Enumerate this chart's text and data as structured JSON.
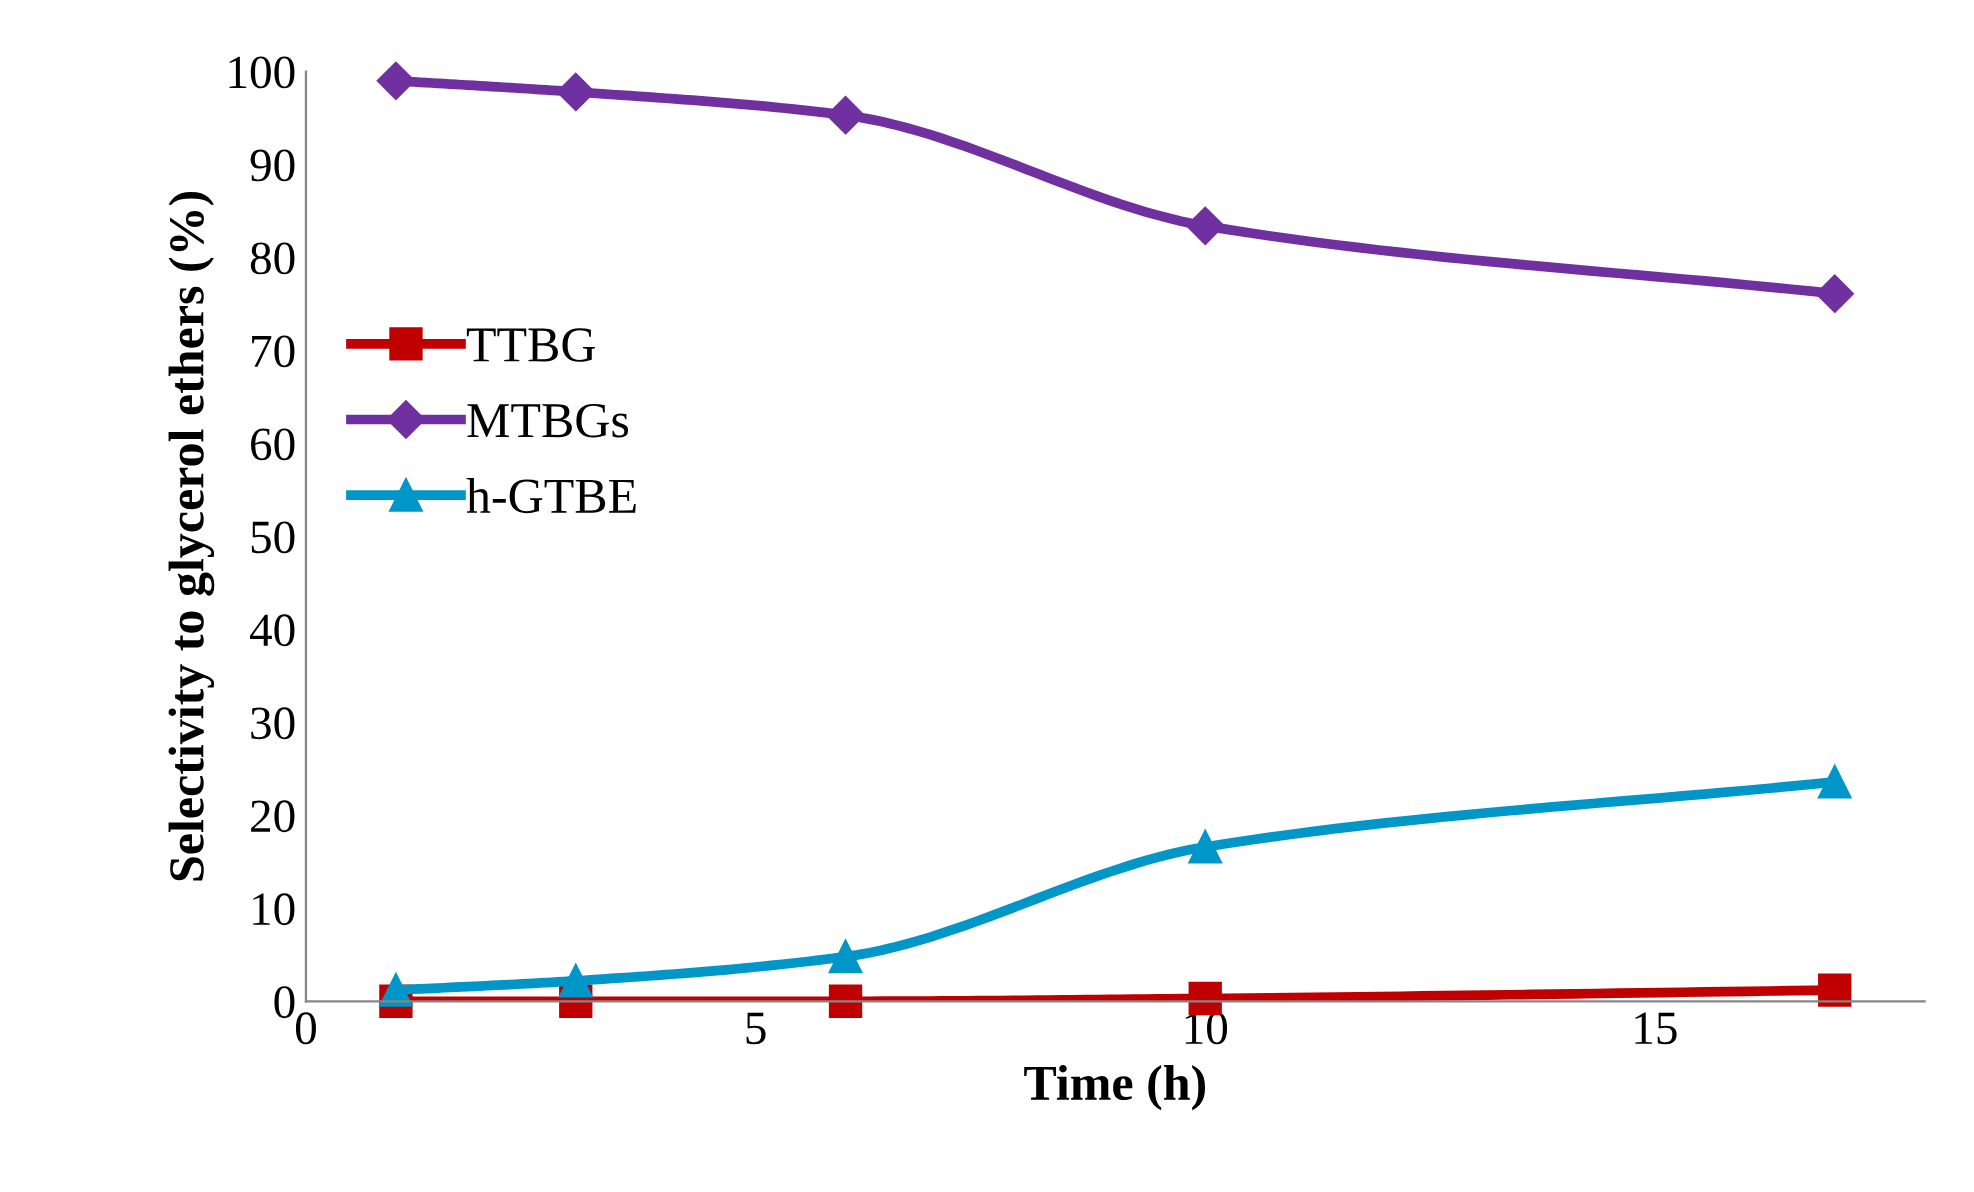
{
  "chart_data": {
    "type": "line",
    "xlabel": "Time (h)",
    "ylabel": "Selectivity to glycerol ethers (%)",
    "x": [
      1,
      3,
      6,
      10,
      17
    ],
    "series": [
      {
        "name": "TTBG",
        "color": "#c00000",
        "marker": "square",
        "values": [
          0,
          0,
          0,
          0.3,
          1.2
        ]
      },
      {
        "name": "MTBGs",
        "color": "#7030a0",
        "marker": "diamond",
        "values": [
          99,
          97.8,
          95.3,
          83.4,
          76.1
        ]
      },
      {
        "name": "h-GTBE",
        "color": "#0096c8",
        "marker": "triangle",
        "values": [
          1.2,
          2.2,
          4.8,
          16.6,
          23.6
        ]
      }
    ],
    "xlim": [
      0,
      18
    ],
    "xticks": [
      0,
      5,
      10,
      15
    ],
    "ylim": [
      0,
      100
    ],
    "yticks": [
      0,
      10,
      20,
      30,
      40,
      50,
      60,
      70,
      80,
      90,
      100
    ],
    "grid": false,
    "legend": "left",
    "line_style": "solid"
  }
}
